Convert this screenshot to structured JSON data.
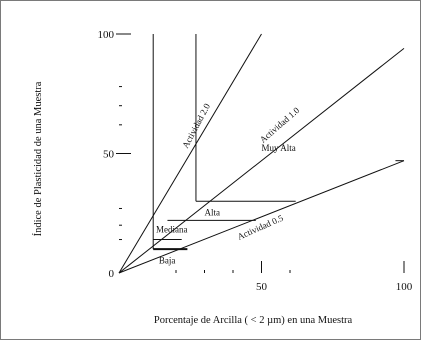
{
  "chart_data": {
    "type": "line",
    "title": "",
    "xlabel": "Porcentaje de Arcilla ( < 2 µm) en una Muestra",
    "ylabel": "Índice de Plasticidad de una Muestra",
    "xlim": [
      0,
      100
    ],
    "ylim": [
      0,
      100
    ],
    "grid": false,
    "legend": "none",
    "x_tick_labels": [
      {
        "value": 50,
        "label": "50"
      },
      {
        "value": 100,
        "label": "100"
      }
    ],
    "y_tick_labels": [
      {
        "value": 0,
        "label": "0"
      },
      {
        "value": 50,
        "label": "50"
      },
      {
        "value": 100,
        "label": "100"
      }
    ],
    "x_minor_ticks": [
      20,
      30,
      40,
      60
    ],
    "y_minor_ticks": [
      14,
      20,
      27,
      62,
      70,
      78
    ],
    "activity_lines": [
      {
        "name": "act-2-0",
        "label": "Actividad 2.0",
        "x": [
          0,
          50
        ],
        "y": [
          0,
          100
        ],
        "label_at": {
          "x": 28,
          "y": 61
        },
        "label_angle": 62
      },
      {
        "name": "act-1-0",
        "label": "Actividad 1.0",
        "x": [
          0,
          100
        ],
        "y": [
          0,
          94
        ],
        "label_at": {
          "x": 57,
          "y": 61
        },
        "label_angle": 41
      },
      {
        "name": "act-0-5",
        "label": "Actividad 0.5",
        "x": [
          0,
          100
        ],
        "y": [
          0,
          47
        ],
        "label_at": {
          "x": 50,
          "y": 18
        },
        "label_angle": 24
      }
    ],
    "boundary_lines": [
      {
        "name": "vertical-left",
        "x": [
          12,
          12
        ],
        "y": [
          10,
          100
        ]
      },
      {
        "name": "vertical-right",
        "x": [
          27,
          27
        ],
        "y": [
          30,
          100
        ]
      },
      {
        "name": "baja-upper",
        "x": [
          12,
          24
        ],
        "y": [
          10,
          10
        ]
      },
      {
        "name": "baja-lower",
        "x": [
          12,
          22
        ],
        "y": [
          14,
          14
        ]
      },
      {
        "name": "mediana-upper",
        "x": [
          17,
          48
        ],
        "y": [
          22,
          22
        ]
      },
      {
        "name": "alta-upper",
        "x": [
          27,
          62
        ],
        "y": [
          30,
          30
        ]
      },
      {
        "name": "act-0-5-tail",
        "x": [
          97,
          100
        ],
        "y": [
          47,
          47
        ]
      }
    ],
    "region_labels": [
      {
        "name": "baja",
        "label": "Baja",
        "x": 14,
        "y": 4
      },
      {
        "name": "mediana",
        "label": "Mediana",
        "x": 13,
        "y": 17
      },
      {
        "name": "alta",
        "label": "Alta",
        "x": 30,
        "y": 24
      },
      {
        "name": "muy-alta",
        "label": "Muy Alta",
        "x": 50,
        "y": 51
      }
    ]
  }
}
